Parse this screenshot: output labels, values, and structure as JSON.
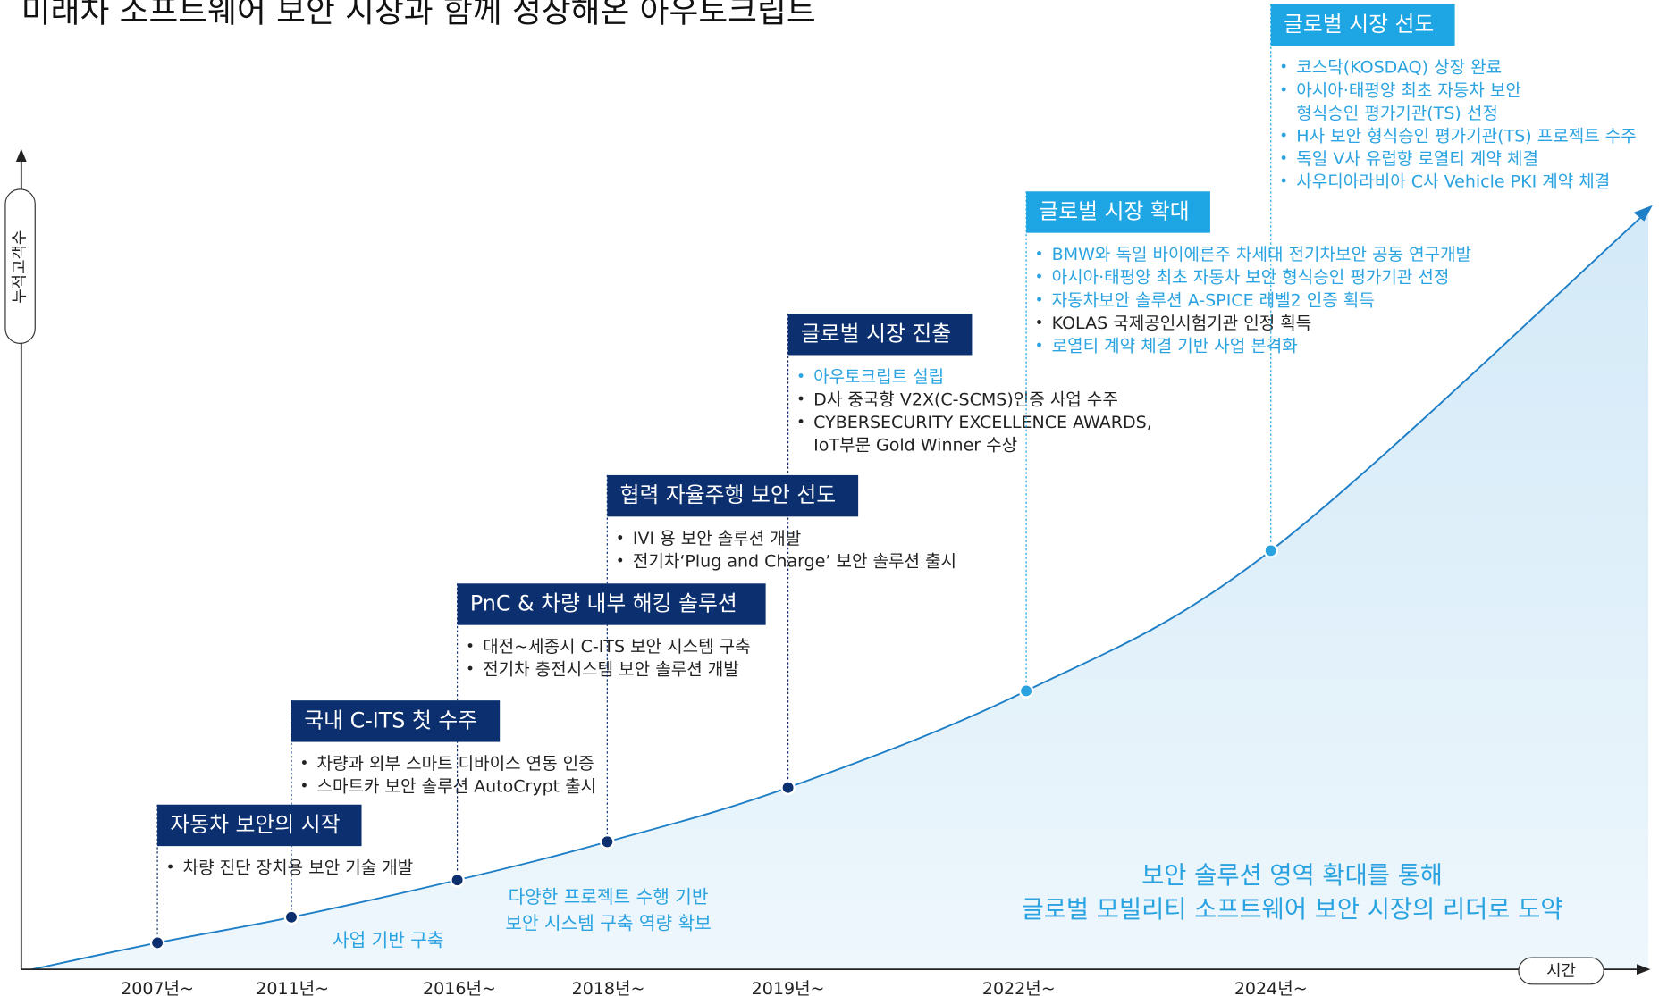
{
  "title": "미래차 소프트웨어 보안 시장과 함께 성장해온 아우토크립트",
  "y_axis_label": "누적고객수",
  "x_axis_label": "시간",
  "milestones": [
    {
      "year": "2007년~",
      "heading": "자동차 보안의 시작",
      "heading_color": "#0b2f6f",
      "items": [
        {
          "lines": [
            "차량 진단 장치용 보안 기술 개발"
          ],
          "color": "#222222"
        }
      ]
    },
    {
      "year": "2011년~",
      "heading": "국내 C-ITS 첫 수주",
      "heading_color": "#0b2f6f",
      "items": [
        {
          "lines": [
            "차량과 외부 스마트 디바이스 연동 인증"
          ],
          "color": "#222222"
        },
        {
          "lines": [
            "스마트카 보안 솔루션 AutoCrypt 출시"
          ],
          "color": "#222222"
        }
      ]
    },
    {
      "year": "2016년~",
      "heading": "PnC & 차량 내부 해킹 솔루션",
      "heading_color": "#0b2f6f",
      "items": [
        {
          "lines": [
            "대전~세종시 C-ITS 보안 시스템 구축"
          ],
          "color": "#222222"
        },
        {
          "lines": [
            "전기차 충전시스템 보안 솔루션 개발"
          ],
          "color": "#222222"
        }
      ]
    },
    {
      "year": "2018년~",
      "heading": "협력 자율주행 보안 선도",
      "heading_color": "#0b2f6f",
      "items": [
        {
          "lines": [
            "IVI 용 보안 솔루션 개발"
          ],
          "color": "#222222"
        },
        {
          "lines": [
            "전기차‘Plug and Charge’ 보안 솔루션 출시"
          ],
          "color": "#222222"
        }
      ]
    },
    {
      "year": "2019년~",
      "heading": "글로벌 시장 진출",
      "heading_color": "#0b2f6f",
      "items": [
        {
          "lines": [
            "아우토크립트 설립"
          ],
          "color": "#2aa3e0"
        },
        {
          "lines": [
            "D사 중국향 V2X(C-SCMS)인증 사업 수주"
          ],
          "color": "#222222"
        },
        {
          "lines": [
            "CYBERSECURITY EXCELLENCE AWARDS,",
            "IoT부문 Gold Winner 수상"
          ],
          "color": "#222222"
        }
      ]
    },
    {
      "year": "2022년~",
      "heading": "글로벌 시장 확대",
      "heading_color": "#1ea5e3",
      "items": [
        {
          "lines": [
            "BMW와 독일 바이에른주 차세대 전기차보안 공동 연구개발"
          ],
          "color": "#2aa3e0"
        },
        {
          "lines": [
            "아시아·태평양 최초 자동차 보안 형식승인 평가기관 선정"
          ],
          "color": "#2aa3e0"
        },
        {
          "lines": [
            "자동차보안 솔루션 A-SPICE 레벨2 인증 획득"
          ],
          "color": "#2aa3e0"
        },
        {
          "lines": [
            "KOLAS 국제공인시험기관 인정 획득"
          ],
          "color": "#222222"
        },
        {
          "lines": [
            "로열티 계약 체결 기반 사업 본격화"
          ],
          "color": "#2aa3e0"
        }
      ]
    },
    {
      "year": "2024년~",
      "heading": "글로벌 시장 선도",
      "heading_color": "#1ea5e3",
      "items": [
        {
          "lines": [
            "코스닥(KOSDAQ) 상장 완료"
          ],
          "color": "#2aa3e0"
        },
        {
          "lines": [
            "아시아·태평양 최초 자동차 보안",
            "형식승인 평가기관(TS) 선정"
          ],
          "color": "#2aa3e0"
        },
        {
          "lines": [
            "H사 보안 형식승인 평가기관(TS) 프로젝트 수주"
          ],
          "color": "#2aa3e0"
        },
        {
          "lines": [
            "독일 V사 유럽향 로열티 계약 체결"
          ],
          "color": "#2aa3e0"
        },
        {
          "lines": [
            "사우디아라비아 C사 Vehicle PKI 계약 체결"
          ],
          "color": "#2aa3e0"
        }
      ]
    }
  ],
  "notes": [
    {
      "lines": [
        "사업 기반 구축"
      ]
    },
    {
      "lines": [
        "다양한 프로젝트 수행 기반",
        "보안 시스템 구축 역량 확보"
      ]
    },
    {
      "lines": [
        "보안 솔루션 영역 확대를 통해",
        "글로벌 모빌리티 소프트웨어 보안 시장의 리더로 도약"
      ]
    }
  ]
}
